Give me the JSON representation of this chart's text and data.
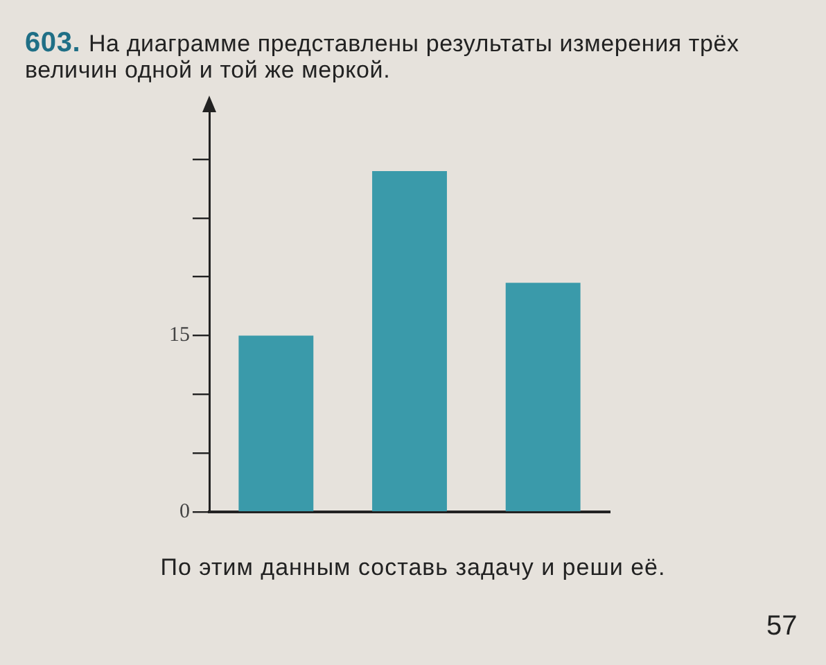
{
  "chart_data": {
    "type": "bar",
    "title": "603. На диаграмме представлены результаты измерения трёх величин одной и той же меркой.",
    "categories": [
      null,
      null,
      null
    ],
    "values": [
      15,
      29,
      19.5
    ],
    "color": "#3a9aaa",
    "ylim": [
      0,
      34
    ],
    "yticks": [
      0,
      {
        "value": 5,
        "label": null
      },
      {
        "value": 10,
        "label": null
      },
      15,
      {
        "value": 20,
        "label": null
      },
      {
        "value": 25,
        "label": null
      },
      {
        "value": 30,
        "label": null
      }
    ],
    "grid": false,
    "annotations": [
      "По этим данным составь задачу и реши её.",
      "57"
    ]
  }
}
